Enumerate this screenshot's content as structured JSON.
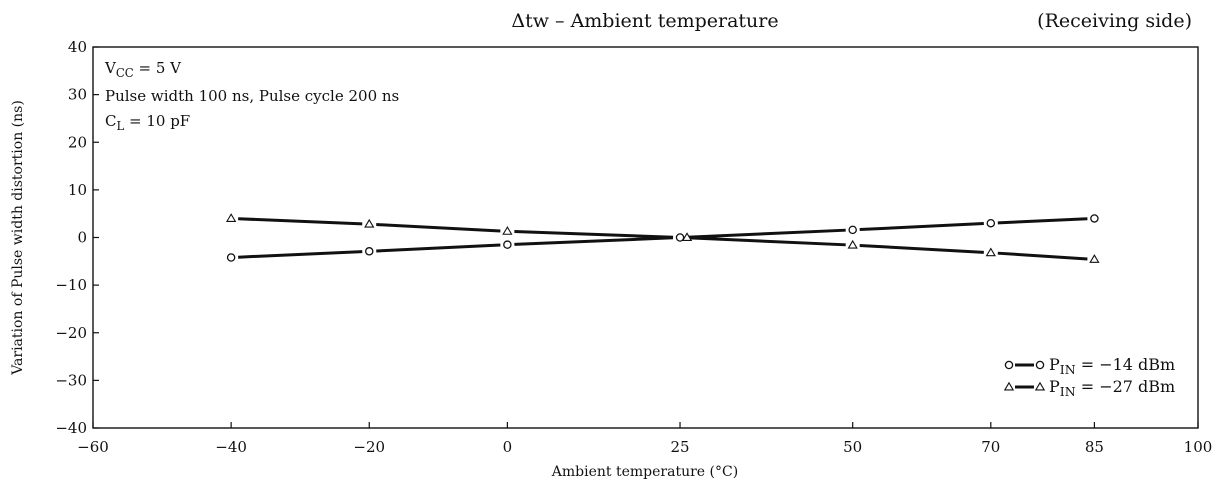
{
  "chart_data": {
    "type": "line",
    "title": "Δtw – Ambient temperature",
    "subtitle": "(Receiving side)",
    "xlabel": "Ambient temperature (°C)",
    "ylabel": "Variation of Pulse width distortion (ns)",
    "x_ticks": [
      -60,
      -40,
      -20,
      0,
      25,
      50,
      70,
      85,
      100
    ],
    "y_ticks": [
      -40,
      -30,
      -20,
      -10,
      0,
      10,
      20,
      30,
      40
    ],
    "xlim": [
      -60,
      100
    ],
    "ylim": [
      -40,
      40
    ],
    "grid": false,
    "legend_position": "bottom-right",
    "conditions": [
      {
        "main": "V",
        "sub": "CC",
        "rest": " = 5 V"
      },
      {
        "main": "Pulse width 100 ns, Pulse cycle 200 ns",
        "sub": "",
        "rest": ""
      },
      {
        "main": "C",
        "sub": "L",
        "rest": " = 10 pF"
      }
    ],
    "x": [
      -40,
      -20,
      0,
      25,
      50,
      70,
      85
    ],
    "series": [
      {
        "legend_main": "P",
        "legend_sub": "IN",
        "legend_rest": " = −14 dBm",
        "marker": "circle",
        "values": [
          -4.2,
          -2.9,
          -1.5,
          0,
          1.6,
          3.0,
          4.0
        ]
      },
      {
        "legend_main": "P",
        "legend_sub": "IN",
        "legend_rest": " = −27 dBm",
        "marker": "triangle",
        "values": [
          4.0,
          2.8,
          1.3,
          0,
          -1.6,
          -3.2,
          -4.6
        ]
      }
    ]
  }
}
